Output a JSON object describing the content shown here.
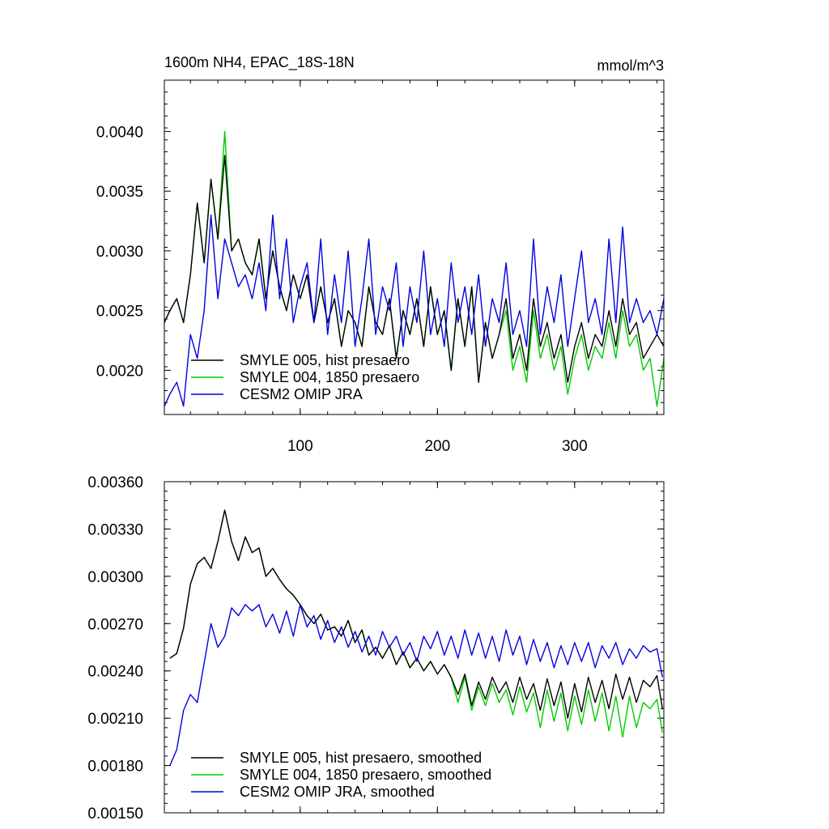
{
  "chart_data": [
    {
      "type": "line",
      "title": "1600m NH4, EPAC_18S-18N",
      "units_label": "mmol/m^3",
      "xlim": [
        1,
        365
      ],
      "ylim": [
        0.00163,
        0.00443
      ],
      "x_ticks": [
        100,
        200,
        300
      ],
      "x_tick_labels": [
        "100",
        "200",
        "300"
      ],
      "y_ticks": [
        0.002,
        0.0025,
        0.003,
        0.0035,
        0.004
      ],
      "y_tick_labels": [
        "0.0020",
        "0.0025",
        "0.0030",
        "0.0035",
        "0.0040"
      ],
      "legend_position": "bottom-left",
      "series": [
        {
          "name": "SMYLE 005, hist presaero",
          "color": "#000000",
          "x": [
            1,
            5,
            10,
            15,
            20,
            25,
            30,
            35,
            40,
            45,
            50,
            55,
            60,
            65,
            70,
            75,
            80,
            85,
            90,
            95,
            100,
            105,
            110,
            115,
            120,
            125,
            130,
            135,
            140,
            145,
            150,
            155,
            160,
            165,
            170,
            175,
            180,
            185,
            190,
            195,
            200,
            205,
            210,
            215,
            220,
            225,
            230,
            235,
            240,
            245,
            250,
            255,
            260,
            265,
            270,
            275,
            280,
            285,
            290,
            295,
            300,
            305,
            310,
            315,
            320,
            325,
            330,
            335,
            340,
            345,
            350,
            355,
            360,
            365
          ],
          "y": [
            0.0024,
            0.0025,
            0.0026,
            0.0024,
            0.0028,
            0.0034,
            0.0029,
            0.0036,
            0.0031,
            0.0038,
            0.003,
            0.0031,
            0.0029,
            0.0028,
            0.0031,
            0.0026,
            0.003,
            0.0027,
            0.0025,
            0.0028,
            0.0026,
            0.0028,
            0.0024,
            0.0027,
            0.0024,
            0.0026,
            0.0022,
            0.0025,
            0.0024,
            0.0022,
            0.0027,
            0.0024,
            0.0023,
            0.0026,
            0.0021,
            0.0025,
            0.0023,
            0.0026,
            0.0022,
            0.0027,
            0.0023,
            0.0025,
            0.002,
            0.0026,
            0.0022,
            0.0027,
            0.0019,
            0.0024,
            0.0021,
            0.0023,
            0.0026,
            0.0021,
            0.0023,
            0.002,
            0.0026,
            0.0022,
            0.0024,
            0.0021,
            0.0023,
            0.0019,
            0.0022,
            0.0024,
            0.0021,
            0.0023,
            0.0022,
            0.0025,
            0.0022,
            0.0026,
            0.0023,
            0.0024,
            0.0021,
            0.0022,
            0.0023,
            0.0022
          ]
        },
        {
          "name": "SMYLE 004, 1850 presaero",
          "color": "#00cc00",
          "x": [
            1,
            5,
            10,
            15,
            20,
            25,
            30,
            35,
            40,
            45,
            50,
            55,
            60,
            65,
            70,
            75,
            80,
            85,
            90,
            95,
            100,
            105,
            110,
            115,
            120,
            125,
            130,
            135,
            140,
            145,
            150,
            155,
            160,
            165,
            170,
            175,
            180,
            185,
            190,
            195,
            200,
            205,
            210,
            215,
            220,
            225,
            230,
            235,
            240,
            245,
            250,
            255,
            260,
            265,
            270,
            275,
            280,
            285,
            290,
            295,
            300,
            305,
            310,
            315,
            320,
            325,
            330,
            335,
            340,
            345,
            350,
            355,
            360,
            365
          ],
          "y": [
            0.0024,
            0.0025,
            0.0026,
            0.0024,
            0.0028,
            0.0034,
            0.0029,
            0.0036,
            0.0031,
            0.004,
            0.003,
            0.0031,
            0.0029,
            0.0028,
            0.0031,
            0.0026,
            0.003,
            0.0027,
            0.0025,
            0.0028,
            0.0026,
            0.0028,
            0.0024,
            0.0027,
            0.0024,
            0.0026,
            0.0022,
            0.0025,
            0.0024,
            0.0022,
            0.0027,
            0.0024,
            0.0023,
            0.0026,
            0.0021,
            0.0025,
            0.0023,
            0.0026,
            0.0022,
            0.0027,
            0.0023,
            0.0025,
            0.002,
            0.0026,
            0.0022,
            0.0027,
            0.0019,
            0.0024,
            0.0021,
            0.0023,
            0.0025,
            0.002,
            0.0022,
            0.0019,
            0.0025,
            0.0021,
            0.0023,
            0.002,
            0.0022,
            0.0018,
            0.0021,
            0.0023,
            0.002,
            0.0022,
            0.0021,
            0.0024,
            0.0021,
            0.0025,
            0.0022,
            0.0023,
            0.002,
            0.0021,
            0.0017,
            0.0021
          ]
        },
        {
          "name": "CESM2 OMIP JRA",
          "color": "#0000e0",
          "x": [
            1,
            5,
            10,
            15,
            20,
            25,
            30,
            35,
            40,
            45,
            50,
            55,
            60,
            65,
            70,
            75,
            80,
            85,
            90,
            95,
            100,
            105,
            110,
            115,
            120,
            125,
            130,
            135,
            140,
            145,
            150,
            155,
            160,
            165,
            170,
            175,
            180,
            185,
            190,
            195,
            200,
            205,
            210,
            215,
            220,
            225,
            230,
            235,
            240,
            245,
            250,
            255,
            260,
            265,
            270,
            275,
            280,
            285,
            290,
            295,
            300,
            305,
            310,
            315,
            320,
            325,
            330,
            335,
            340,
            345,
            350,
            355,
            360,
            365
          ],
          "y": [
            0.0017,
            0.0018,
            0.0019,
            0.0017,
            0.0023,
            0.0021,
            0.0025,
            0.0033,
            0.0026,
            0.0031,
            0.0029,
            0.0027,
            0.0028,
            0.0026,
            0.0029,
            0.0025,
            0.0033,
            0.0026,
            0.0031,
            0.0024,
            0.0027,
            0.0029,
            0.0024,
            0.0031,
            0.0023,
            0.0028,
            0.0024,
            0.003,
            0.0022,
            0.0026,
            0.0031,
            0.0023,
            0.0027,
            0.0025,
            0.0029,
            0.0022,
            0.0027,
            0.0024,
            0.003,
            0.0023,
            0.0026,
            0.0022,
            0.0029,
            0.0024,
            0.0027,
            0.0023,
            0.0028,
            0.0022,
            0.0026,
            0.0024,
            0.0029,
            0.0023,
            0.0025,
            0.0022,
            0.0031,
            0.0023,
            0.0027,
            0.0024,
            0.0028,
            0.0022,
            0.0026,
            0.003,
            0.0024,
            0.0026,
            0.0023,
            0.0031,
            0.0024,
            0.0032,
            0.0024,
            0.0026,
            0.0024,
            0.0025,
            0.0023,
            0.0026
          ]
        }
      ]
    },
    {
      "type": "line",
      "xlim": [
        1,
        365
      ],
      "ylim": [
        0.0015,
        0.0036
      ],
      "x_ticks": [
        100,
        200,
        300
      ],
      "y_ticks": [
        0.0015,
        0.0018,
        0.0021,
        0.0024,
        0.0027,
        0.003,
        0.0033,
        0.0036
      ],
      "y_tick_labels": [
        "0.00150",
        "0.00180",
        "0.00210",
        "0.00240",
        "0.00270",
        "0.00300",
        "0.00330",
        "0.00360"
      ],
      "legend_position": "bottom-left",
      "series": [
        {
          "name": "SMYLE 005, hist presaero, smoothed",
          "color": "#000000",
          "x": [
            5,
            10,
            15,
            20,
            25,
            30,
            35,
            40,
            45,
            50,
            55,
            60,
            65,
            70,
            75,
            80,
            85,
            90,
            95,
            100,
            105,
            110,
            115,
            120,
            125,
            130,
            135,
            140,
            145,
            150,
            155,
            160,
            165,
            170,
            175,
            180,
            185,
            190,
            195,
            200,
            205,
            210,
            215,
            220,
            225,
            230,
            235,
            240,
            245,
            250,
            255,
            260,
            265,
            270,
            275,
            280,
            285,
            290,
            295,
            300,
            305,
            310,
            315,
            320,
            325,
            330,
            335,
            340,
            345,
            350,
            355,
            360,
            364
          ],
          "y": [
            0.00248,
            0.00251,
            0.00267,
            0.00295,
            0.00308,
            0.00312,
            0.00305,
            0.00322,
            0.00342,
            0.00322,
            0.0031,
            0.00325,
            0.00315,
            0.00318,
            0.003,
            0.00305,
            0.00298,
            0.00292,
            0.00288,
            0.00282,
            0.00275,
            0.0027,
            0.00276,
            0.00266,
            0.00268,
            0.00262,
            0.00272,
            0.00258,
            0.00266,
            0.0025,
            0.00255,
            0.00248,
            0.00256,
            0.00244,
            0.00252,
            0.00242,
            0.00248,
            0.0024,
            0.00246,
            0.00238,
            0.00244,
            0.00236,
            0.00225,
            0.00238,
            0.00218,
            0.00233,
            0.00222,
            0.00236,
            0.00226,
            0.00233,
            0.0022,
            0.00236,
            0.00222,
            0.00232,
            0.00215,
            0.00235,
            0.00218,
            0.00233,
            0.0021,
            0.00232,
            0.00214,
            0.00236,
            0.0022,
            0.00234,
            0.00216,
            0.00238,
            0.00222,
            0.00236,
            0.0022,
            0.00234,
            0.0023,
            0.00237,
            0.00216
          ]
        },
        {
          "name": "SMYLE 004, 1850 presaero, smoothed",
          "color": "#00cc00",
          "x": [
            5,
            10,
            15,
            20,
            25,
            30,
            35,
            40,
            45,
            50,
            55,
            60,
            65,
            70,
            75,
            80,
            85,
            90,
            95,
            100,
            105,
            110,
            115,
            120,
            125,
            130,
            135,
            140,
            145,
            150,
            155,
            160,
            165,
            170,
            175,
            180,
            185,
            190,
            195,
            200,
            205,
            210,
            215,
            220,
            225,
            230,
            235,
            240,
            245,
            250,
            255,
            260,
            265,
            270,
            275,
            280,
            285,
            290,
            295,
            300,
            305,
            310,
            315,
            320,
            325,
            330,
            335,
            340,
            345,
            350,
            355,
            360,
            364
          ],
          "y": [
            0.00248,
            0.00251,
            0.00267,
            0.00295,
            0.00308,
            0.00312,
            0.00305,
            0.00322,
            0.00342,
            0.00322,
            0.0031,
            0.00325,
            0.00315,
            0.00318,
            0.003,
            0.00305,
            0.00298,
            0.00292,
            0.00288,
            0.00282,
            0.00275,
            0.0027,
            0.00276,
            0.00266,
            0.00268,
            0.00262,
            0.00272,
            0.00258,
            0.00266,
            0.0025,
            0.00255,
            0.00248,
            0.00256,
            0.00244,
            0.00252,
            0.00242,
            0.00248,
            0.0024,
            0.00246,
            0.00238,
            0.00244,
            0.00236,
            0.0022,
            0.00236,
            0.00215,
            0.0023,
            0.00218,
            0.00232,
            0.0022,
            0.00228,
            0.00212,
            0.0023,
            0.00214,
            0.00226,
            0.00204,
            0.00228,
            0.00208,
            0.00226,
            0.00202,
            0.00224,
            0.00206,
            0.00228,
            0.00208,
            0.00226,
            0.00202,
            0.00224,
            0.00198,
            0.00224,
            0.00204,
            0.0022,
            0.00216,
            0.00222,
            0.00201
          ]
        },
        {
          "name": "CESM2 OMIP JRA, smoothed",
          "color": "#0000e0",
          "x": [
            5,
            10,
            15,
            20,
            25,
            30,
            35,
            40,
            45,
            50,
            55,
            60,
            65,
            70,
            75,
            80,
            85,
            90,
            95,
            100,
            105,
            110,
            115,
            120,
            125,
            130,
            135,
            140,
            145,
            150,
            155,
            160,
            165,
            170,
            175,
            180,
            185,
            190,
            195,
            200,
            205,
            210,
            215,
            220,
            225,
            230,
            235,
            240,
            245,
            250,
            255,
            260,
            265,
            270,
            275,
            280,
            285,
            290,
            295,
            300,
            305,
            310,
            315,
            320,
            325,
            330,
            335,
            340,
            345,
            350,
            355,
            360,
            364
          ],
          "y": [
            0.0018,
            0.0019,
            0.00215,
            0.00225,
            0.0022,
            0.00245,
            0.0027,
            0.00255,
            0.00262,
            0.0028,
            0.00275,
            0.00282,
            0.00278,
            0.00282,
            0.00268,
            0.00276,
            0.00264,
            0.00278,
            0.00262,
            0.00282,
            0.00268,
            0.00275,
            0.0026,
            0.00272,
            0.00258,
            0.00268,
            0.00255,
            0.00265,
            0.00252,
            0.00262,
            0.0025,
            0.00265,
            0.00255,
            0.00262,
            0.0025,
            0.00258,
            0.00246,
            0.00262,
            0.00254,
            0.00265,
            0.0025,
            0.00262,
            0.00248,
            0.00266,
            0.0025,
            0.00264,
            0.00248,
            0.00262,
            0.00246,
            0.00266,
            0.0025,
            0.00262,
            0.00244,
            0.0026,
            0.00246,
            0.00258,
            0.00242,
            0.00256,
            0.00244,
            0.00258,
            0.00246,
            0.00258,
            0.00242,
            0.00256,
            0.00248,
            0.00258,
            0.00244,
            0.00254,
            0.00248,
            0.00256,
            0.00252,
            0.00254,
            0.00236
          ]
        }
      ]
    }
  ]
}
